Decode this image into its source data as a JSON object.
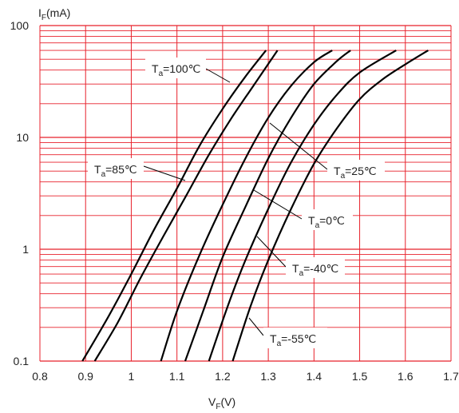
{
  "chart_data": {
    "type": "line",
    "title": "",
    "xlabel": {
      "main": "V",
      "sub": "F",
      "unit": "(V)"
    },
    "ylabel": {
      "main": "I",
      "sub": "F",
      "unit": "(mA)"
    },
    "x_scale": "linear",
    "y_scale": "log",
    "xlim": [
      0.8,
      1.7
    ],
    "ylim": [
      0.1,
      100
    ],
    "x_ticks": [
      "0.8",
      "0.9",
      "1",
      "1.1",
      "1.2",
      "1.3",
      "1.4",
      "1.5",
      "1.6",
      "1.7"
    ],
    "y_ticks": [
      "0.1",
      "1",
      "10",
      "100"
    ],
    "grid": true,
    "grid_color": "#e8212b",
    "line_color": "#000000",
    "series": [
      {
        "name": "Ta=100℃",
        "label_main": "T",
        "label_sub": "a",
        "label_rest": "=100℃",
        "points": [
          [
            0.893,
            0.1
          ],
          [
            0.95,
            0.25
          ],
          [
            1.0,
            0.6
          ],
          [
            1.05,
            1.5
          ],
          [
            1.1,
            3.5
          ],
          [
            1.15,
            8.5
          ],
          [
            1.2,
            18
          ],
          [
            1.25,
            35
          ],
          [
            1.295,
            60
          ]
        ]
      },
      {
        "name": "Ta=85℃",
        "label_main": "T",
        "label_sub": "a",
        "label_rest": "=85℃",
        "points": [
          [
            0.92,
            0.1
          ],
          [
            0.97,
            0.22
          ],
          [
            1.02,
            0.55
          ],
          [
            1.07,
            1.3
          ],
          [
            1.12,
            3.0
          ],
          [
            1.17,
            7.0
          ],
          [
            1.22,
            15
          ],
          [
            1.27,
            30
          ],
          [
            1.32,
            60
          ]
        ]
      },
      {
        "name": "Ta=25℃",
        "label_main": "T",
        "label_sub": "a",
        "label_rest": "=25℃",
        "points": [
          [
            1.065,
            0.1
          ],
          [
            1.1,
            0.28
          ],
          [
            1.15,
            0.9
          ],
          [
            1.2,
            2.5
          ],
          [
            1.25,
            6.5
          ],
          [
            1.3,
            15
          ],
          [
            1.35,
            29
          ],
          [
            1.4,
            47
          ],
          [
            1.44,
            60
          ]
        ]
      },
      {
        "name": "Ta=0℃",
        "label_main": "T",
        "label_sub": "a",
        "label_rest": "=0℃",
        "points": [
          [
            1.118,
            0.1
          ],
          [
            1.16,
            0.3
          ],
          [
            1.2,
            0.85
          ],
          [
            1.25,
            2.4
          ],
          [
            1.3,
            6.5
          ],
          [
            1.35,
            15
          ],
          [
            1.4,
            30
          ],
          [
            1.45,
            48
          ],
          [
            1.48,
            60
          ]
        ]
      },
      {
        "name": "Ta=-40℃",
        "label_main": "T",
        "label_sub": "a",
        "label_rest": "=-40℃",
        "points": [
          [
            1.17,
            0.1
          ],
          [
            1.21,
            0.3
          ],
          [
            1.25,
            0.8
          ],
          [
            1.3,
            2.3
          ],
          [
            1.35,
            6.0
          ],
          [
            1.4,
            13
          ],
          [
            1.45,
            24
          ],
          [
            1.5,
            38
          ],
          [
            1.58,
            60
          ]
        ]
      },
      {
        "name": "Ta=-55℃",
        "label_main": "T",
        "label_sub": "a",
        "label_rest": "=-55℃",
        "points": [
          [
            1.222,
            0.1
          ],
          [
            1.26,
            0.3
          ],
          [
            1.3,
            0.8
          ],
          [
            1.35,
            2.3
          ],
          [
            1.4,
            5.8
          ],
          [
            1.45,
            12
          ],
          [
            1.5,
            22
          ],
          [
            1.55,
            33
          ],
          [
            1.6,
            45
          ],
          [
            1.65,
            60
          ]
        ]
      }
    ]
  }
}
